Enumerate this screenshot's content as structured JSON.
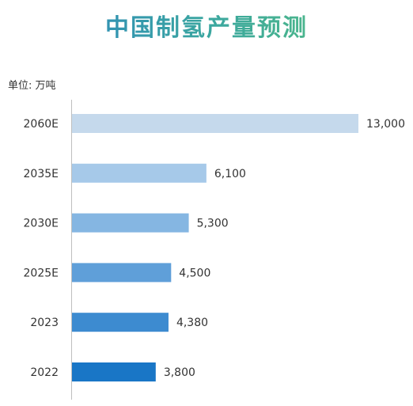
{
  "chart_data": {
    "type": "bar",
    "orientation": "horizontal",
    "title": "中国制氢产量预测",
    "unit_label": "单位: 万吨",
    "categories": [
      "2060E",
      "2035E",
      "2030E",
      "2025E",
      "2023",
      "2022"
    ],
    "values": [
      13000,
      6100,
      5300,
      4500,
      4380,
      3800
    ],
    "value_labels": [
      "13,000",
      "6,100",
      "5,300",
      "4,500",
      "4,380",
      "3,800"
    ],
    "bar_colors": [
      "#c5d9ec",
      "#a6c9e9",
      "#85b6e2",
      "#5f9fd9",
      "#3d8bd0",
      "#1976c6"
    ],
    "xlim": [
      0,
      13000
    ],
    "grid": false,
    "legend": "none"
  }
}
